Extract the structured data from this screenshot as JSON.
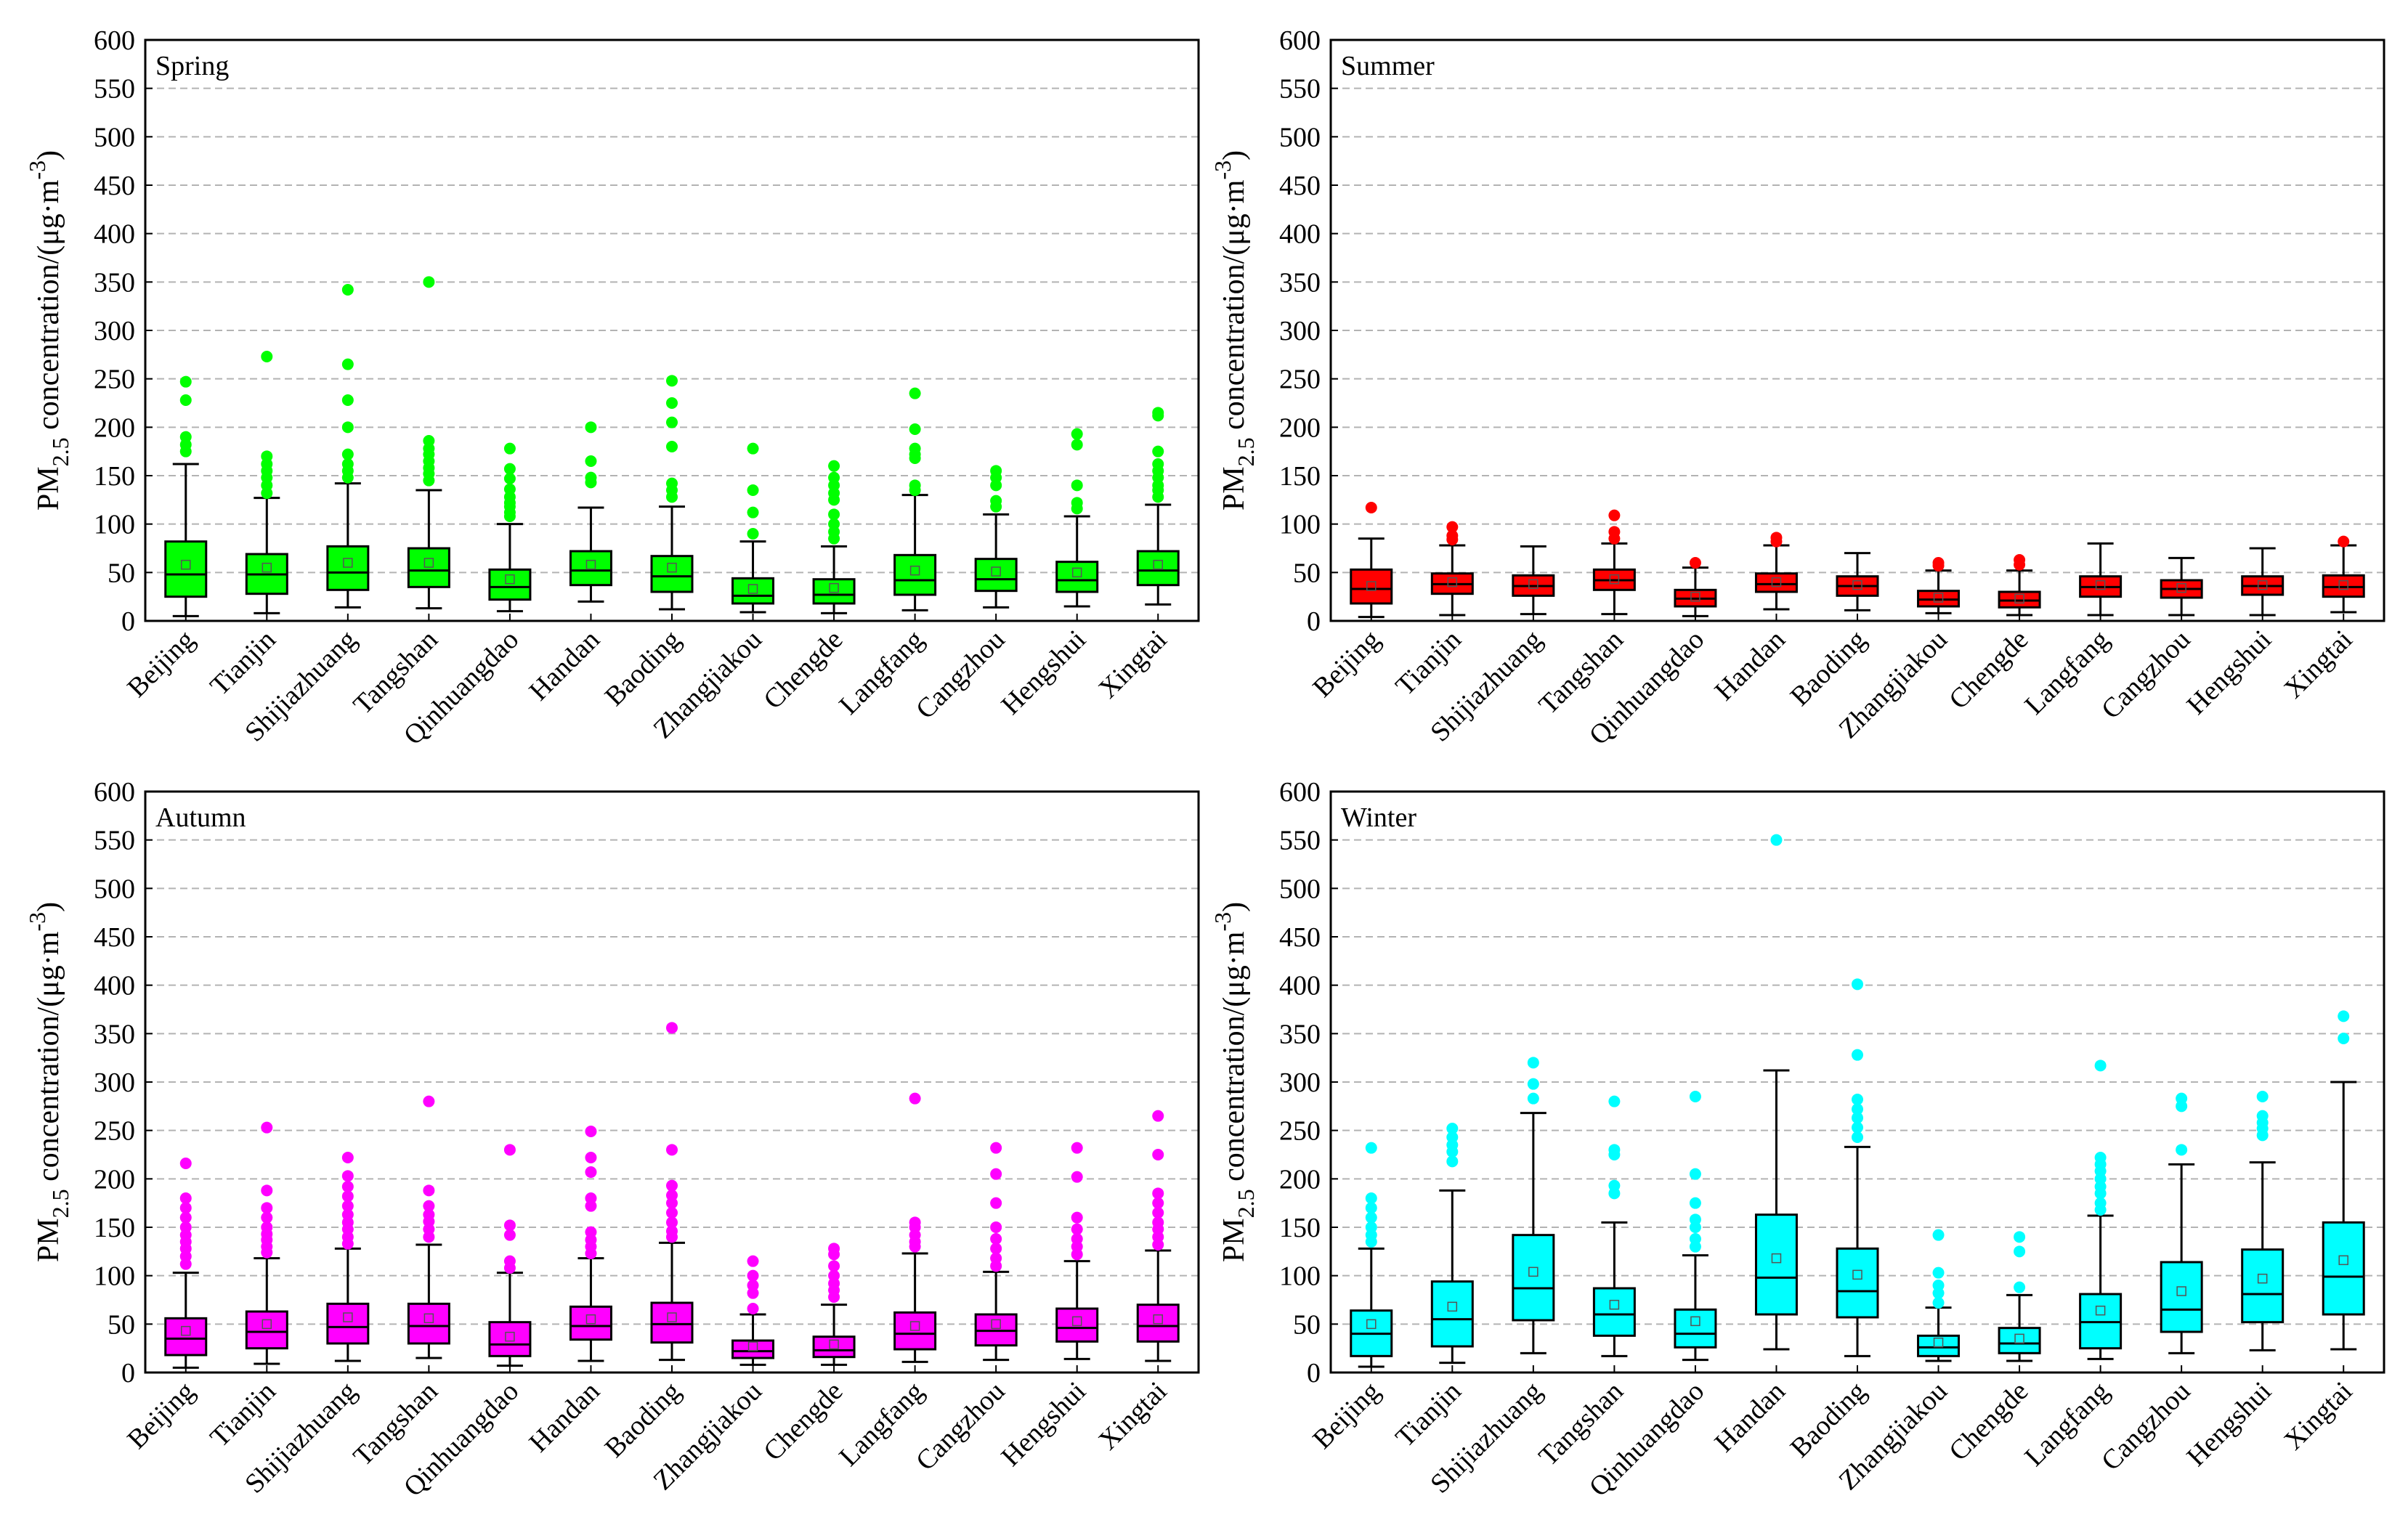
{
  "cities": [
    "Beijing",
    "Tianjin",
    "Shijiazhuang",
    "Tangshan",
    "Qinhuangdao",
    "Handan",
    "Baoding",
    "Zhangjiakou",
    "Chengde",
    "Langfang",
    "Cangzhou",
    "Hengshui",
    "Xingtai"
  ],
  "y_ticks": [
    "0",
    "50",
    "100",
    "150",
    "200",
    "250",
    "300",
    "350",
    "400",
    "450",
    "500",
    "550",
    "600"
  ],
  "chart_data": [
    {
      "type": "box",
      "title": "Spring",
      "ylabel_main": "PM",
      "ylabel_sub": "2.5",
      "ylabel_rest": " concentration/(μg·m",
      "ylabel_sup": "-3",
      "ylabel_close": ")",
      "ylim": [
        0,
        600
      ],
      "color": "#00ff00",
      "boxes": [
        {
          "city": "Beijing",
          "whislo": 5,
          "q1": 25,
          "med": 48,
          "q3": 82,
          "whishi": 162,
          "mean": 58,
          "fliers": [
            175,
            182,
            190,
            228,
            247
          ]
        },
        {
          "city": "Tianjin",
          "whislo": 8,
          "q1": 28,
          "med": 48,
          "q3": 69,
          "whishi": 127,
          "mean": 55,
          "fliers": [
            132,
            140,
            148,
            155,
            162,
            170,
            273
          ]
        },
        {
          "city": "Shijiazhuang",
          "whislo": 14,
          "q1": 32,
          "med": 50,
          "q3": 77,
          "whishi": 142,
          "mean": 60,
          "fliers": [
            148,
            155,
            162,
            172,
            200,
            228,
            265,
            342
          ]
        },
        {
          "city": "Tangshan",
          "whislo": 13,
          "q1": 35,
          "med": 52,
          "q3": 75,
          "whishi": 135,
          "mean": 60,
          "fliers": [
            145,
            152,
            158,
            165,
            172,
            178,
            186,
            350
          ]
        },
        {
          "city": "Qinhuangdao",
          "whislo": 10,
          "q1": 22,
          "med": 35,
          "q3": 53,
          "whishi": 100,
          "mean": 43,
          "fliers": [
            108,
            112,
            118,
            122,
            128,
            136,
            147,
            157,
            178
          ]
        },
        {
          "city": "Handan",
          "whislo": 20,
          "q1": 37,
          "med": 52,
          "q3": 72,
          "whishi": 117,
          "mean": 58,
          "fliers": [
            143,
            148,
            165,
            200
          ]
        },
        {
          "city": "Baoding",
          "whislo": 12,
          "q1": 30,
          "med": 46,
          "q3": 67,
          "whishi": 118,
          "mean": 55,
          "fliers": [
            128,
            135,
            142,
            180,
            205,
            225,
            248
          ]
        },
        {
          "city": "Zhangjiakou",
          "whislo": 9,
          "q1": 18,
          "med": 26,
          "q3": 44,
          "whishi": 82,
          "mean": 33,
          "fliers": [
            90,
            112,
            135,
            178
          ]
        },
        {
          "city": "Chengde",
          "whislo": 8,
          "q1": 18,
          "med": 27,
          "q3": 43,
          "whishi": 77,
          "mean": 34,
          "fliers": [
            85,
            92,
            100,
            110,
            125,
            132,
            140,
            148,
            160
          ]
        },
        {
          "city": "Langfang",
          "whislo": 11,
          "q1": 27,
          "med": 42,
          "q3": 68,
          "whishi": 130,
          "mean": 52,
          "fliers": [
            135,
            140,
            168,
            172,
            178,
            198,
            235
          ]
        },
        {
          "city": "Cangzhou",
          "whislo": 14,
          "q1": 31,
          "med": 43,
          "q3": 64,
          "whishi": 110,
          "mean": 51,
          "fliers": [
            118,
            124,
            140,
            148,
            155
          ]
        },
        {
          "city": "Hengshui",
          "whislo": 15,
          "q1": 30,
          "med": 42,
          "q3": 61,
          "whishi": 108,
          "mean": 50,
          "fliers": [
            116,
            122,
            140,
            182,
            193
          ]
        },
        {
          "city": "Xingtai",
          "whislo": 17,
          "q1": 37,
          "med": 52,
          "q3": 72,
          "whishi": 120,
          "mean": 58,
          "fliers": [
            128,
            135,
            140,
            148,
            155,
            162,
            175,
            212,
            215
          ]
        }
      ]
    },
    {
      "type": "box",
      "title": "Summer",
      "ylabel_main": "PM",
      "ylabel_sub": "2.5",
      "ylabel_rest": " concentration/(μg·m",
      "ylabel_sup": "-3",
      "ylabel_close": ")",
      "ylim": [
        0,
        600
      ],
      "color": "#ff0000",
      "boxes": [
        {
          "city": "Beijing",
          "whislo": 4,
          "q1": 18,
          "med": 33,
          "q3": 53,
          "whishi": 85,
          "mean": 36,
          "fliers": [
            117
          ]
        },
        {
          "city": "Tianjin",
          "whislo": 6,
          "q1": 28,
          "med": 38,
          "q3": 49,
          "whishi": 78,
          "mean": 40,
          "fliers": [
            84,
            88,
            97
          ]
        },
        {
          "city": "Shijiazhuang",
          "whislo": 7,
          "q1": 26,
          "med": 36,
          "q3": 47,
          "whishi": 77,
          "mean": 38,
          "fliers": []
        },
        {
          "city": "Tangshan",
          "whislo": 7,
          "q1": 32,
          "med": 42,
          "q3": 53,
          "whishi": 80,
          "mean": 43,
          "fliers": [
            85,
            92,
            109
          ]
        },
        {
          "city": "Qinhuangdao",
          "whislo": 5,
          "q1": 15,
          "med": 23,
          "q3": 32,
          "whishi": 55,
          "mean": 25,
          "fliers": [
            60
          ]
        },
        {
          "city": "Handan",
          "whislo": 12,
          "q1": 30,
          "med": 38,
          "q3": 49,
          "whishi": 78,
          "mean": 40,
          "fliers": [
            82,
            86
          ]
        },
        {
          "city": "Baoding",
          "whislo": 11,
          "q1": 26,
          "med": 36,
          "q3": 46,
          "whishi": 70,
          "mean": 37,
          "fliers": []
        },
        {
          "city": "Zhangjiakou",
          "whislo": 8,
          "q1": 15,
          "med": 22,
          "q3": 31,
          "whishi": 52,
          "mean": 24,
          "fliers": [
            57,
            60
          ]
        },
        {
          "city": "Chengde",
          "whislo": 6,
          "q1": 14,
          "med": 21,
          "q3": 30,
          "whishi": 52,
          "mean": 23,
          "fliers": [
            58,
            63
          ]
        },
        {
          "city": "Langfang",
          "whislo": 6,
          "q1": 25,
          "med": 35,
          "q3": 46,
          "whishi": 80,
          "mean": 37,
          "fliers": []
        },
        {
          "city": "Cangzhou",
          "whislo": 6,
          "q1": 24,
          "med": 33,
          "q3": 42,
          "whishi": 65,
          "mean": 34,
          "fliers": []
        },
        {
          "city": "Hengshui",
          "whislo": 6,
          "q1": 27,
          "med": 36,
          "q3": 46,
          "whishi": 75,
          "mean": 37,
          "fliers": []
        },
        {
          "city": "Xingtai",
          "whislo": 9,
          "q1": 25,
          "med": 35,
          "q3": 47,
          "whishi": 78,
          "mean": 37,
          "fliers": [
            82
          ]
        }
      ]
    },
    {
      "type": "box",
      "title": "Autumn",
      "ylabel_main": "PM",
      "ylabel_sub": "2.5",
      "ylabel_rest": " concentration/(μg·m",
      "ylabel_sup": "-3",
      "ylabel_close": ")",
      "ylim": [
        0,
        600
      ],
      "color": "#ff00ff",
      "boxes": [
        {
          "city": "Beijing",
          "whislo": 5,
          "q1": 18,
          "med": 35,
          "q3": 56,
          "whishi": 103,
          "mean": 43,
          "fliers": [
            112,
            120,
            128,
            135,
            142,
            150,
            160,
            170,
            180,
            216
          ]
        },
        {
          "city": "Tianjin",
          "whislo": 9,
          "q1": 25,
          "med": 42,
          "q3": 63,
          "whishi": 118,
          "mean": 50,
          "fliers": [
            124,
            130,
            137,
            143,
            150,
            160,
            170,
            188,
            253
          ]
        },
        {
          "city": "Shijiazhuang",
          "whislo": 12,
          "q1": 30,
          "med": 47,
          "q3": 71,
          "whishi": 128,
          "mean": 57,
          "fliers": [
            133,
            140,
            148,
            155,
            163,
            172,
            182,
            192,
            203,
            222
          ]
        },
        {
          "city": "Tangshan",
          "whislo": 15,
          "q1": 30,
          "med": 48,
          "q3": 71,
          "whishi": 132,
          "mean": 56,
          "fliers": [
            140,
            148,
            156,
            163,
            172,
            188,
            280
          ]
        },
        {
          "city": "Qinhuangdao",
          "whislo": 7,
          "q1": 17,
          "med": 29,
          "q3": 52,
          "whishi": 103,
          "mean": 37,
          "fliers": [
            108,
            115,
            142,
            152,
            230
          ]
        },
        {
          "city": "Handan",
          "whislo": 12,
          "q1": 34,
          "med": 48,
          "q3": 68,
          "whishi": 118,
          "mean": 55,
          "fliers": [
            123,
            130,
            137,
            145,
            172,
            180,
            207,
            222,
            249
          ]
        },
        {
          "city": "Baoding",
          "whislo": 13,
          "q1": 31,
          "med": 50,
          "q3": 72,
          "whishi": 134,
          "mean": 57,
          "fliers": [
            140,
            146,
            155,
            165,
            175,
            183,
            193,
            230,
            356
          ]
        },
        {
          "city": "Zhangjiakou",
          "whislo": 8,
          "q1": 15,
          "med": 22,
          "q3": 33,
          "whishi": 60,
          "mean": 27,
          "fliers": [
            66,
            82,
            90,
            100,
            115
          ]
        },
        {
          "city": "Chengde",
          "whislo": 8,
          "q1": 16,
          "med": 23,
          "q3": 37,
          "whishi": 70,
          "mean": 29,
          "fliers": [
            78,
            85,
            92,
            100,
            110,
            122,
            128
          ]
        },
        {
          "city": "Langfang",
          "whislo": 11,
          "q1": 24,
          "med": 40,
          "q3": 62,
          "whishi": 123,
          "mean": 48,
          "fliers": [
            130,
            135,
            142,
            150,
            155,
            283
          ]
        },
        {
          "city": "Cangzhou",
          "whislo": 13,
          "q1": 28,
          "med": 43,
          "q3": 60,
          "whishi": 104,
          "mean": 50,
          "fliers": [
            110,
            118,
            128,
            138,
            150,
            175,
            205,
            232
          ]
        },
        {
          "city": "Hengshui",
          "whislo": 14,
          "q1": 32,
          "med": 46,
          "q3": 66,
          "whishi": 115,
          "mean": 53,
          "fliers": [
            122,
            130,
            138,
            148,
            160,
            202,
            232
          ]
        },
        {
          "city": "Xingtai",
          "whislo": 12,
          "q1": 32,
          "med": 48,
          "q3": 70,
          "whishi": 126,
          "mean": 55,
          "fliers": [
            132,
            140,
            148,
            155,
            165,
            175,
            185,
            225,
            265
          ]
        }
      ]
    },
    {
      "type": "box",
      "title": "Winter",
      "ylabel_main": "PM",
      "ylabel_sub": "2.5",
      "ylabel_rest": " concentration/(μg·m",
      "ylabel_sup": "-3",
      "ylabel_close": ")",
      "ylim": [
        0,
        600
      ],
      "color": "#00ffff",
      "boxes": [
        {
          "city": "Beijing",
          "whislo": 6,
          "q1": 17,
          "med": 40,
          "q3": 64,
          "whishi": 128,
          "mean": 50,
          "fliers": [
            135,
            142,
            150,
            160,
            170,
            180,
            232
          ]
        },
        {
          "city": "Tianjin",
          "whislo": 10,
          "q1": 27,
          "med": 55,
          "q3": 94,
          "whishi": 188,
          "mean": 68,
          "fliers": [
            218,
            228,
            235,
            243,
            252
          ]
        },
        {
          "city": "Shijiazhuang",
          "whislo": 20,
          "q1": 54,
          "med": 87,
          "q3": 142,
          "whishi": 268,
          "mean": 104,
          "fliers": [
            283,
            298,
            320
          ]
        },
        {
          "city": "Tangshan",
          "whislo": 17,
          "q1": 38,
          "med": 60,
          "q3": 87,
          "whishi": 155,
          "mean": 70,
          "fliers": [
            185,
            193,
            225,
            230,
            280
          ]
        },
        {
          "city": "Qinhuangdao",
          "whislo": 13,
          "q1": 26,
          "med": 40,
          "q3": 65,
          "whishi": 121,
          "mean": 53,
          "fliers": [
            130,
            138,
            150,
            158,
            175,
            205,
            285
          ]
        },
        {
          "city": "Handan",
          "whislo": 24,
          "q1": 60,
          "med": 98,
          "q3": 163,
          "whishi": 312,
          "mean": 118,
          "fliers": [
            550
          ]
        },
        {
          "city": "Baoding",
          "whislo": 17,
          "q1": 57,
          "med": 84,
          "q3": 128,
          "whishi": 233,
          "mean": 101,
          "fliers": [
            243,
            253,
            263,
            272,
            282,
            328,
            401
          ]
        },
        {
          "city": "Zhangjiakou",
          "whislo": 12,
          "q1": 17,
          "med": 26,
          "q3": 38,
          "whishi": 67,
          "mean": 31,
          "fliers": [
            72,
            82,
            90,
            103,
            142
          ]
        },
        {
          "city": "Chengde",
          "whislo": 12,
          "q1": 20,
          "med": 30,
          "q3": 46,
          "whishi": 80,
          "mean": 35,
          "fliers": [
            88,
            125,
            140
          ]
        },
        {
          "city": "Langfang",
          "whislo": 14,
          "q1": 25,
          "med": 52,
          "q3": 81,
          "whishi": 162,
          "mean": 64,
          "fliers": [
            168,
            175,
            185,
            192,
            200,
            208,
            215,
            222,
            317
          ]
        },
        {
          "city": "Cangzhou",
          "whislo": 20,
          "q1": 42,
          "med": 65,
          "q3": 114,
          "whishi": 215,
          "mean": 84,
          "fliers": [
            230,
            275,
            283
          ]
        },
        {
          "city": "Hengshui",
          "whislo": 23,
          "q1": 52,
          "med": 81,
          "q3": 127,
          "whishi": 217,
          "mean": 97,
          "fliers": [
            245,
            252,
            258,
            265,
            285
          ]
        },
        {
          "city": "Xingtai",
          "whislo": 24,
          "q1": 60,
          "med": 99,
          "q3": 155,
          "whishi": 300,
          "mean": 116,
          "fliers": [
            345,
            368
          ]
        }
      ]
    }
  ]
}
